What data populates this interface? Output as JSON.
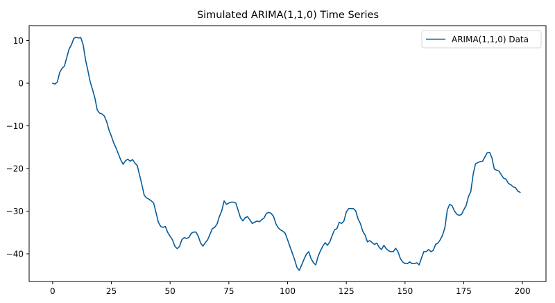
{
  "chart_data": {
    "type": "line",
    "title": "Simulated ARIMA(1,1,0) Time Series",
    "xlabel": "",
    "ylabel": "",
    "xlim": [
      -10,
      210
    ],
    "ylim": [
      -46.5,
      13.5
    ],
    "xticks": [
      0,
      25,
      50,
      75,
      100,
      125,
      150,
      175,
      200
    ],
    "yticks": [
      10,
      0,
      -10,
      -20,
      -30,
      -40
    ],
    "xtick_labels": [
      "0",
      "25",
      "50",
      "75",
      "100",
      "125",
      "150",
      "175",
      "200"
    ],
    "ytick_labels": [
      "10",
      "0",
      "−10",
      "−20",
      "−30",
      "−40"
    ],
    "grid": false,
    "legend_position": "upper right",
    "series": [
      {
        "name": "ARIMA(1,1,0) Data",
        "color": "#075b9a",
        "x_start": 0,
        "x_step": 1,
        "values": [
          0,
          -0.2,
          0.3,
          2.5,
          3.5,
          4,
          6,
          8,
          9,
          10.5,
          10.8,
          10.6,
          10.7,
          9,
          5.5,
          3,
          0.3,
          -1.5,
          -3.5,
          -6.3,
          -7,
          -7.2,
          -7.7,
          -9,
          -11,
          -12.4,
          -14,
          -15.2,
          -16.6,
          -18,
          -19,
          -18.2,
          -17.8,
          -18.3,
          -17.9,
          -18.7,
          -19.3,
          -21.5,
          -23.8,
          -26.3,
          -26.9,
          -27.2,
          -27.6,
          -28.1,
          -30.3,
          -32.6,
          -33.6,
          -33.8,
          -33.6,
          -35,
          -35.9,
          -36.7,
          -38.2,
          -38.8,
          -38.3,
          -36.7,
          -36.2,
          -36.4,
          -36.2,
          -35.2,
          -34.9,
          -34.9,
          -35.9,
          -37.5,
          -38.2,
          -37.4,
          -36.7,
          -35.4,
          -34.1,
          -33.8,
          -33,
          -31.2,
          -29.9,
          -27.6,
          -28.4,
          -28.1,
          -27.9,
          -27.9,
          -28.1,
          -29.9,
          -31.6,
          -32.3,
          -31.5,
          -31.3,
          -32.1,
          -32.9,
          -32.6,
          -32.3,
          -32.5,
          -32,
          -31.6,
          -30.5,
          -30.3,
          -30.5,
          -31.2,
          -32.9,
          -33.9,
          -34.4,
          -34.7,
          -35.2,
          -36.7,
          -38.3,
          -39.8,
          -41.4,
          -43.2,
          -43.9,
          -42.6,
          -41.3,
          -40.1,
          -39.5,
          -41.1,
          -42.1,
          -42.6,
          -40.6,
          -39.3,
          -38.2,
          -37.4,
          -38,
          -37.2,
          -35.7,
          -34.4,
          -34.1,
          -32.6,
          -32.9,
          -32.3,
          -30.2,
          -29.4,
          -29.4,
          -29.4,
          -29.9,
          -31.8,
          -32.9,
          -34.7,
          -35.6,
          -37.2,
          -36.9,
          -37.4,
          -37.8,
          -37.5,
          -38.5,
          -39,
          -38,
          -38.8,
          -39.3,
          -39.5,
          -39.5,
          -38.7,
          -39.5,
          -41.1,
          -41.9,
          -42.3,
          -42.3,
          -41.9,
          -42.3,
          -42.3,
          -42.1,
          -42.6,
          -41,
          -39.5,
          -39.5,
          -39,
          -39.5,
          -39.2,
          -37.8,
          -37.5,
          -36.7,
          -35.6,
          -33.8,
          -29.7,
          -28.4,
          -28.7,
          -29.9,
          -30.7,
          -31,
          -30.8,
          -29.7,
          -28.7,
          -26.6,
          -25.4,
          -21.4,
          -18.9,
          -18.6,
          -18.4,
          -18.3,
          -17.3,
          -16.3,
          -16.2,
          -17.5,
          -20.1,
          -20.4,
          -20.6,
          -21.5,
          -22.3,
          -22.5,
          -23.5,
          -23.8,
          -24.3,
          -24.5,
          -25.3,
          -25.6
        ]
      }
    ]
  },
  "legend": {
    "entries": [
      {
        "label": "ARIMA(1,1,0) Data",
        "color": "#075b9a"
      }
    ]
  }
}
